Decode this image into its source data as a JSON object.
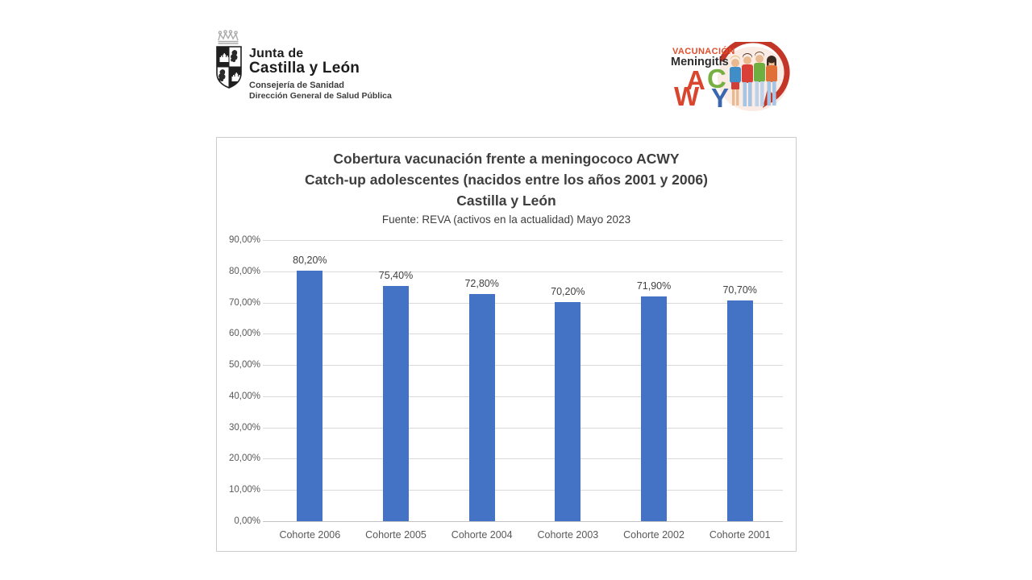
{
  "header": {
    "left_logo": {
      "org_line1": "Junta de",
      "org_line2": "Castilla y León",
      "dept_line1": "Consejería de Sanidad",
      "dept_line2": "Dirección General de Salud Pública",
      "coat_of_arms_icon": "castilla-leon-shield-with-crown"
    },
    "right_logo": {
      "line1": "VACUNACIÓN",
      "line2": "Meningitis",
      "letters": [
        {
          "char": "A",
          "color": "#d9452e"
        },
        {
          "char": "C",
          "color": "#76b043"
        },
        {
          "char": "W",
          "color": "#d9452e"
        },
        {
          "char": "Y",
          "color": "#3a67ae"
        }
      ],
      "arrow_icon": "circular-red-arrow",
      "people_icon": "four-adolescents-illustration",
      "arrow_color": "#c23527"
    }
  },
  "chart_data": {
    "type": "bar",
    "title_lines": [
      "Cobertura vacunación  frente a meningococo ACWY",
      "Catch-up adolescentes (nacidos entre los años 2001 y 2006)",
      "Castilla y León"
    ],
    "subtitle": "Fuente: REVA (activos en la actualidad) Mayo 2023",
    "categories": [
      "Cohorte 2006",
      "Cohorte 2005",
      "Cohorte 2004",
      "Cohorte 2003",
      "Cohorte 2002",
      "Cohorte 2001"
    ],
    "values": [
      80.2,
      75.4,
      72.8,
      70.2,
      71.9,
      70.7
    ],
    "data_labels": [
      "80,20%",
      "75,40%",
      "72,80%",
      "70,20%",
      "71,90%",
      "70,70%"
    ],
    "y_ticks": [
      "90,00%",
      "80,00%",
      "70,00%",
      "60,00%",
      "50,00%",
      "40,00%",
      "30,00%",
      "20,00%",
      "10,00%",
      "0,00%"
    ],
    "ylim": [
      0,
      90
    ],
    "xlabel": "",
    "ylabel": "",
    "grid": true,
    "legend": "none",
    "bar_color": "#4472c4",
    "gridline_color": "#d9d9d9"
  }
}
